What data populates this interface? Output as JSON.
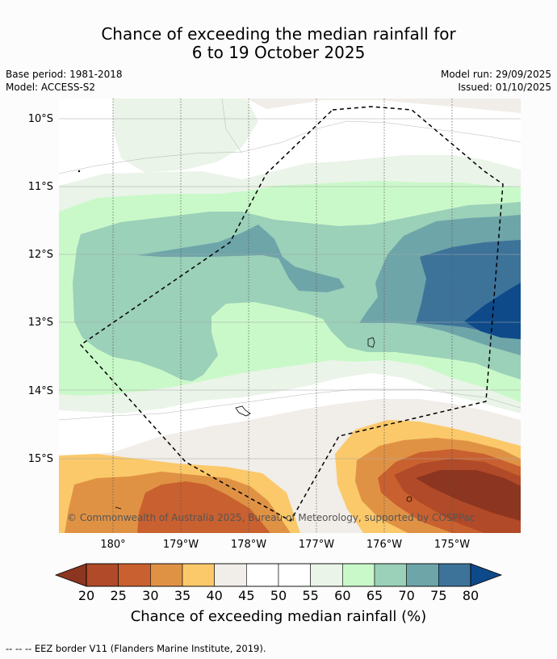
{
  "title": {
    "line1": "Chance of exceeding the median rainfall for",
    "line2": "6 to 19 October 2025"
  },
  "meta": {
    "base_period": "Base period: 1981-2018",
    "model": "Model: ACCESS-S2",
    "model_run": "Model run: 29/09/2025",
    "issued": "Issued: 01/10/2025"
  },
  "axes": {
    "lat_labels": [
      "10°S",
      "11°S",
      "12°S",
      "13°S",
      "14°S",
      "15°S"
    ],
    "lon_labels": [
      "180°",
      "179°W",
      "178°W",
      "177°W",
      "176°W",
      "175°W"
    ]
  },
  "copyright": "© Commonwealth of Australia 2025, Bureau of Meteorology, supported by COSPPac",
  "colorbar": {
    "ticks": [
      "20",
      "25",
      "30",
      "35",
      "40",
      "45",
      "50",
      "55",
      "60",
      "65",
      "70",
      "75",
      "80"
    ],
    "under_color": "#8c3520",
    "over_color": "#0e4a8a",
    "colors": [
      "#b04a28",
      "#c9602f",
      "#e09244",
      "#fbc96a",
      "#f1ede8",
      "#ffffff",
      "#ffffff",
      "#eaf4e8",
      "#caf9c9",
      "#9bd0b9",
      "#6ea5a9",
      "#3d7399"
    ],
    "label": "Chance of exceeding median rainfall (%)"
  },
  "footer": "--  --  -- EEZ border V11 (Flanders Marine Institute, 2019)."
}
